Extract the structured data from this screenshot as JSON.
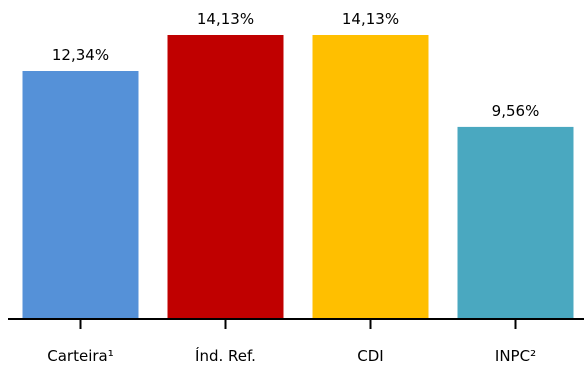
{
  "chart_data": {
    "type": "bar",
    "title": "",
    "xlabel": "",
    "ylabel": "",
    "categories": [
      "Carteira¹",
      "Índ. Ref.",
      "CDI",
      "INPC²"
    ],
    "values": [
      12.34,
      14.13,
      14.13,
      9.56
    ],
    "value_labels": [
      "12,34%",
      "14,13%",
      "14,13%",
      "9,56%"
    ],
    "colors": [
      "#5591d8",
      "#c00000",
      "#ffbf00",
      "#4aa8c0"
    ],
    "ylim": [
      0,
      14.13
    ],
    "grid": false,
    "legend": "none"
  }
}
